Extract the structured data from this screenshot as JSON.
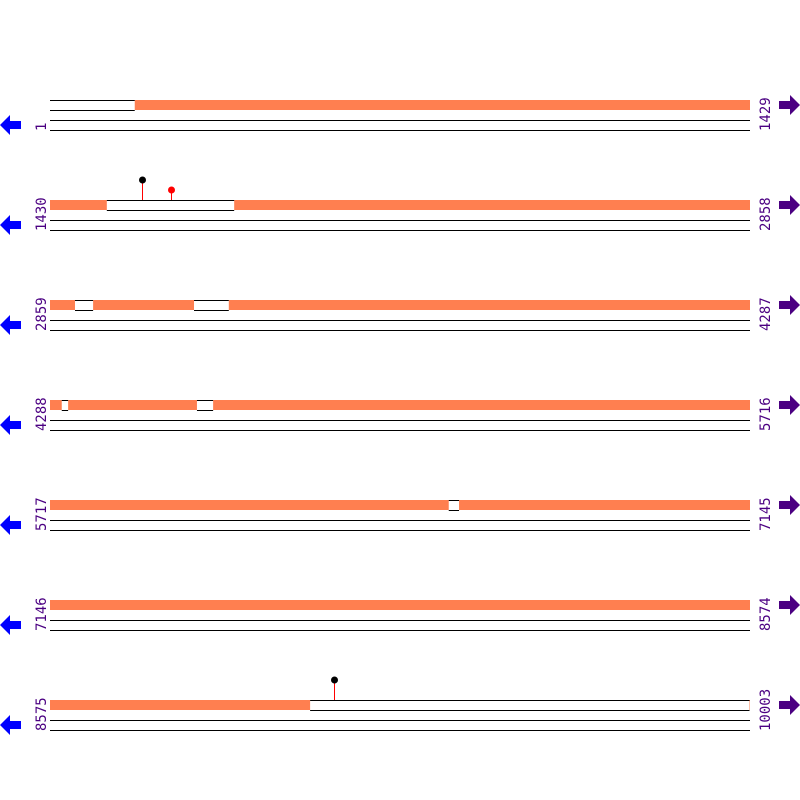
{
  "colors": {
    "feature": "#ff7f50",
    "label": "#4b0082",
    "reverse_arrow": "#0000ff",
    "forward_arrow": "#4b0082",
    "marker_high": "#000000",
    "marker_low": "#ff0000",
    "stem": "#ff0000"
  },
  "icons": {
    "left": "arrow-left-icon",
    "right": "arrow-right-icon"
  },
  "bp_per_row": 1429,
  "rows": [
    {
      "start": "1",
      "end": "1429",
      "s": 1,
      "gaps": [
        [
          1,
          174
        ]
      ],
      "markers": []
    },
    {
      "start": "1430",
      "end": "2858",
      "s": 1430,
      "gaps": [
        [
          1546,
          1806
        ]
      ],
      "markers": [
        {
          "pos": 1618,
          "level": 2,
          "color": "#000000"
        },
        {
          "pos": 1677,
          "level": 1,
          "color": "#ff0000"
        }
      ]
    },
    {
      "start": "2859",
      "end": "4287",
      "s": 2859,
      "gaps": [
        [
          2910,
          2947
        ],
        [
          3153,
          3224
        ]
      ],
      "markers": []
    },
    {
      "start": "4288",
      "end": "5716",
      "s": 4288,
      "gaps": [
        [
          4312,
          4325
        ],
        [
          4588,
          4621
        ]
      ],
      "markers": []
    },
    {
      "start": "5717",
      "end": "7145",
      "s": 5717,
      "gaps": [
        [
          6531,
          6552
        ]
      ],
      "markers": []
    },
    {
      "start": "7146",
      "end": "8574",
      "s": 7146,
      "gaps": [],
      "markers": []
    },
    {
      "start": "8575",
      "end": "10003",
      "s": 8575,
      "gaps": [
        [
          9106,
          10003
        ]
      ],
      "markers": [
        {
          "pos": 9155,
          "level": 2,
          "color": "#000000"
        }
      ]
    }
  ]
}
